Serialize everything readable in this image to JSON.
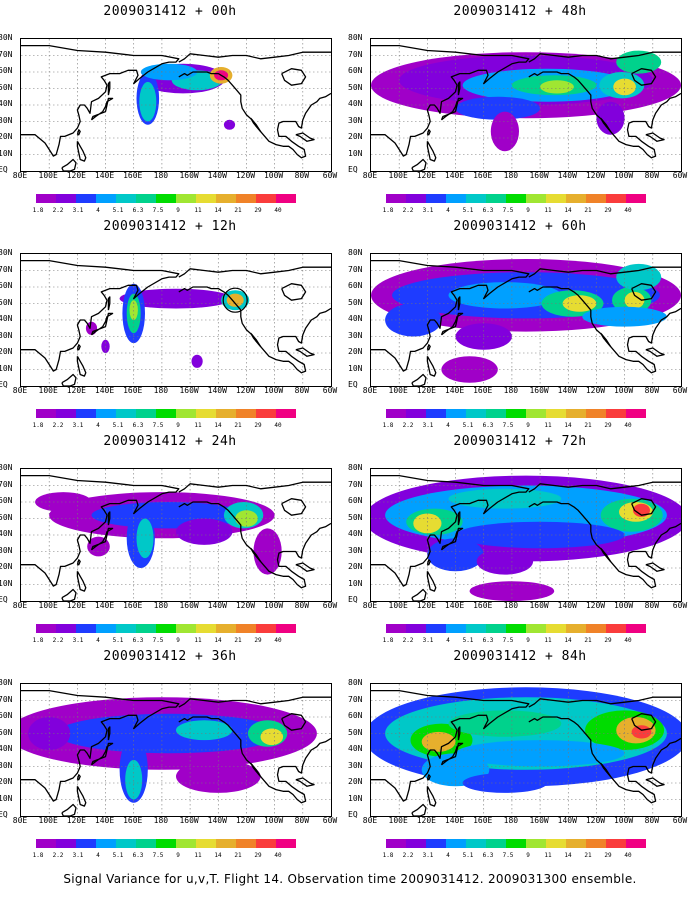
{
  "panels": [
    {
      "title": "2009031412 + 00h",
      "lead": "00h"
    },
    {
      "title": "2009031412 + 48h",
      "lead": "48h"
    },
    {
      "title": "2009031412 + 12h",
      "lead": "12h"
    },
    {
      "title": "2009031412 + 60h",
      "lead": "60h"
    },
    {
      "title": "2009031412 + 24h",
      "lead": "24h"
    },
    {
      "title": "2009031412 + 72h",
      "lead": "72h"
    },
    {
      "title": "2009031412 + 36h",
      "lead": "36h"
    },
    {
      "title": "2009031412 + 84h",
      "lead": "84h"
    }
  ],
  "lat_labels": [
    "80N",
    "70N",
    "60N",
    "50N",
    "40N",
    "30N",
    "20N",
    "10N",
    "EQ"
  ],
  "lon_labels": [
    "80E",
    "100E",
    "120E",
    "140E",
    "160E",
    "180",
    "160W",
    "140W",
    "120W",
    "100W",
    "80W",
    "60W"
  ],
  "colorbar": {
    "labels": [
      "1.8",
      "2.2",
      "3.1",
      "4",
      "5.1",
      "6.3",
      "7.5",
      "9",
      "11",
      "14",
      "21",
      "29",
      "40"
    ],
    "colors": [
      "#a000c8",
      "#8200dc",
      "#1e3cff",
      "#00a0ff",
      "#00c8c8",
      "#00d28c",
      "#00dc00",
      "#a0e632",
      "#e6dc32",
      "#e6af2d",
      "#f08228",
      "#fa3c3c",
      "#f00082"
    ]
  },
  "footer": "Signal Variance for u,v,T. Flight 14. Observation time 2009031412. 2009031300 ensemble."
}
